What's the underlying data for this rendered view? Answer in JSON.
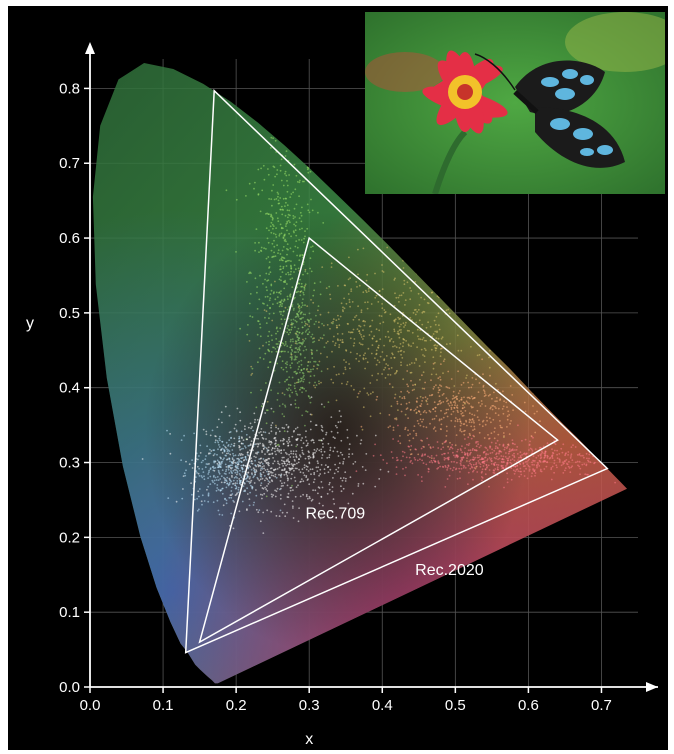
{
  "chart_data": {
    "type": "scatter",
    "title": "",
    "xlabel": "x",
    "ylabel": "y",
    "xlim": [
      0.0,
      0.75
    ],
    "ylim": [
      0.0,
      0.85
    ],
    "x_ticks": [
      "0.0",
      "0.1",
      "0.2",
      "0.3",
      "0.4",
      "0.5",
      "0.6",
      "0.7"
    ],
    "y_ticks": [
      "0.0",
      "0.1",
      "0.2",
      "0.3",
      "0.4",
      "0.5",
      "0.6",
      "0.7",
      "0.8"
    ],
    "grid": true,
    "spectral_locus": [
      [
        0.175,
        0.005
      ],
      [
        0.174,
        0.005
      ],
      [
        0.173,
        0.005
      ],
      [
        0.171,
        0.005
      ],
      [
        0.167,
        0.009
      ],
      [
        0.161,
        0.014
      ],
      [
        0.151,
        0.023
      ],
      [
        0.144,
        0.03
      ],
      [
        0.133,
        0.047
      ],
      [
        0.124,
        0.058
      ],
      [
        0.11,
        0.087
      ],
      [
        0.091,
        0.133
      ],
      [
        0.069,
        0.201
      ],
      [
        0.045,
        0.295
      ],
      [
        0.023,
        0.413
      ],
      [
        0.008,
        0.538
      ],
      [
        0.004,
        0.655
      ],
      [
        0.014,
        0.75
      ],
      [
        0.039,
        0.812
      ],
      [
        0.074,
        0.834
      ],
      [
        0.114,
        0.826
      ],
      [
        0.155,
        0.806
      ],
      [
        0.193,
        0.782
      ],
      [
        0.23,
        0.754
      ],
      [
        0.266,
        0.724
      ],
      [
        0.302,
        0.692
      ],
      [
        0.337,
        0.659
      ],
      [
        0.373,
        0.625
      ],
      [
        0.409,
        0.59
      ],
      [
        0.444,
        0.555
      ],
      [
        0.479,
        0.52
      ],
      [
        0.512,
        0.487
      ],
      [
        0.544,
        0.455
      ],
      [
        0.575,
        0.425
      ],
      [
        0.603,
        0.396
      ],
      [
        0.627,
        0.372
      ],
      [
        0.648,
        0.351
      ],
      [
        0.666,
        0.334
      ],
      [
        0.68,
        0.32
      ],
      [
        0.691,
        0.308
      ],
      [
        0.701,
        0.299
      ],
      [
        0.711,
        0.289
      ],
      [
        0.719,
        0.281
      ],
      [
        0.726,
        0.274
      ],
      [
        0.73,
        0.27
      ],
      [
        0.735,
        0.265
      ]
    ],
    "series": [
      {
        "name": "Rec.709",
        "points": [
          [
            0.64,
            0.33
          ],
          [
            0.3,
            0.6
          ],
          [
            0.15,
            0.06
          ]
        ]
      },
      {
        "name": "Rec.2020",
        "points": [
          [
            0.708,
            0.292
          ],
          [
            0.17,
            0.797
          ],
          [
            0.131,
            0.046
          ]
        ]
      }
    ],
    "image_point_clouds": [
      {
        "color": "#9ee36a",
        "center": [
          0.265,
          0.56
        ],
        "spread": [
          0.045,
          0.18
        ],
        "count": 520
      },
      {
        "color": "#8fd070",
        "center": [
          0.285,
          0.45
        ],
        "spread": [
          0.03,
          0.09
        ],
        "count": 240
      },
      {
        "color": "#ffffff",
        "center": [
          0.26,
          0.3
        ],
        "spread": [
          0.1,
          0.06
        ],
        "count": 700
      },
      {
        "color": "#bfe8ff",
        "center": [
          0.19,
          0.29
        ],
        "spread": [
          0.05,
          0.05
        ],
        "count": 380
      },
      {
        "color": "#ff7a86",
        "center": [
          0.56,
          0.305
        ],
        "spread": [
          0.14,
          0.025
        ],
        "count": 650
      },
      {
        "color": "#ffb07a",
        "center": [
          0.5,
          0.37
        ],
        "spread": [
          0.09,
          0.05
        ],
        "count": 380
      },
      {
        "color": "#d8c26a",
        "center": [
          0.4,
          0.47
        ],
        "spread": [
          0.13,
          0.09
        ],
        "count": 520
      }
    ],
    "colors": {
      "background": "#000000",
      "gamut_outline": "#ffffff",
      "grid": "#555555",
      "locus_green": "#3f8a3a",
      "locus_blue": "#2a3f8c",
      "locus_red": "#d8463a",
      "locus_magenta": "#b33a8a",
      "locus_yellow": "#cfc23c"
    }
  },
  "inset_photo": {
    "colors": {
      "background": "#3f8f3a",
      "petal": "#e8324a",
      "center": "#f2c22a",
      "wing_blue": "#5fb6de",
      "wing_dark": "#1a1a1a"
    }
  }
}
